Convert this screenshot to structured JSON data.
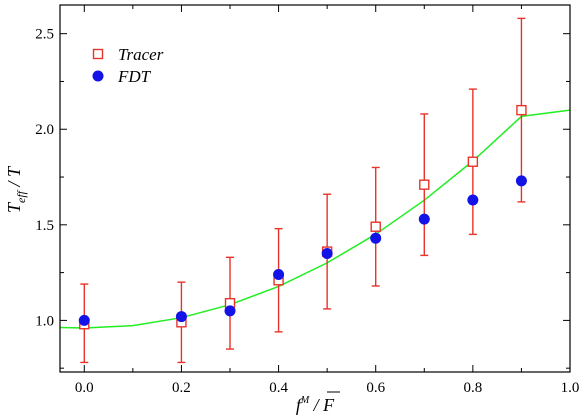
{
  "chart_data": {
    "type": "scatter",
    "title": "",
    "xlabel": "f^M / F",
    "ylabel": "T_eff / T",
    "xlim": [
      -0.05,
      1.0
    ],
    "ylim": [
      0.73,
      2.65
    ],
    "grid": false,
    "legend_position": "top-left",
    "x_ticks": [
      0.0,
      0.2,
      0.4,
      0.6,
      0.8,
      1.0
    ],
    "x_tick_labels": [
      "0.0",
      "0.2",
      "0.4",
      "0.6",
      "0.8",
      "1.0"
    ],
    "y_ticks": [
      1.0,
      1.5,
      2.0,
      2.5
    ],
    "y_tick_labels": [
      "1.0",
      "1.5",
      "2.0",
      "2.5"
    ],
    "series": [
      {
        "name": "Tracer",
        "marker": "open-square",
        "color": "#e8332a",
        "points": [
          {
            "x": 0.0,
            "y": 0.98,
            "err_low": 0.78,
            "err_high": 1.19
          },
          {
            "x": 0.2,
            "y": 0.99,
            "err_low": 0.78,
            "err_high": 1.2
          },
          {
            "x": 0.3,
            "y": 1.09,
            "err_low": 0.85,
            "err_high": 1.33
          },
          {
            "x": 0.4,
            "y": 1.21,
            "err_low": 0.94,
            "err_high": 1.48
          },
          {
            "x": 0.5,
            "y": 1.36,
            "err_low": 1.06,
            "err_high": 1.66
          },
          {
            "x": 0.6,
            "y": 1.49,
            "err_low": 1.18,
            "err_high": 1.8
          },
          {
            "x": 0.7,
            "y": 1.71,
            "err_low": 1.34,
            "err_high": 2.08
          },
          {
            "x": 0.8,
            "y": 1.83,
            "err_low": 1.45,
            "err_high": 2.21
          },
          {
            "x": 0.9,
            "y": 2.1,
            "err_low": 1.62,
            "err_high": 2.58
          }
        ]
      },
      {
        "name": "FDT",
        "marker": "filled-circle",
        "color": "#1313e8",
        "points": [
          {
            "x": 0.0,
            "y": 1.0
          },
          {
            "x": 0.2,
            "y": 1.02
          },
          {
            "x": 0.3,
            "y": 1.05
          },
          {
            "x": 0.4,
            "y": 1.24
          },
          {
            "x": 0.5,
            "y": 1.35
          },
          {
            "x": 0.6,
            "y": 1.43
          },
          {
            "x": 0.7,
            "y": 1.53
          },
          {
            "x": 0.8,
            "y": 1.63
          },
          {
            "x": 0.9,
            "y": 1.73
          }
        ]
      },
      {
        "marker": "line",
        "color": "#22ee22",
        "x": [
          -0.05,
          0.0,
          0.1,
          0.2,
          0.3,
          0.4,
          0.5,
          0.6,
          0.7,
          0.8,
          0.9,
          1.0
        ],
        "y": [
          0.963,
          0.96,
          0.973,
          1.014,
          1.082,
          1.178,
          1.301,
          1.451,
          1.629,
          1.834,
          2.067,
          2.1
        ]
      }
    ]
  }
}
